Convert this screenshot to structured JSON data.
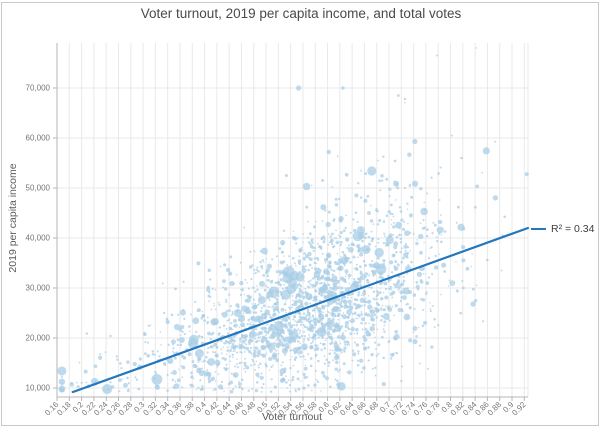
{
  "window": {
    "background": "#ffffff",
    "frame_border_color": "#c9c9c9"
  },
  "chart_data": {
    "type": "scatter",
    "title": "Voter turnout, 2019 per capita income, and total votes",
    "xlabel": "Voter turnout",
    "ylabel": "2019 per capita income",
    "x_tick_values": [
      0.16,
      0.18,
      0.2,
      0.22,
      0.24,
      0.26,
      0.28,
      0.3,
      0.32,
      0.34,
      0.36,
      0.38,
      0.4,
      0.42,
      0.44,
      0.46,
      0.48,
      0.5,
      0.52,
      0.54,
      0.56,
      0.58,
      0.6,
      0.62,
      0.64,
      0.66,
      0.68,
      0.7,
      0.72,
      0.74,
      0.76,
      0.78,
      0.8,
      0.82,
      0.84,
      0.86,
      0.88,
      0.9,
      0.92
    ],
    "x_tick_labels": [
      "0.16",
      "0.18",
      "0.2",
      "0.22",
      "0.24",
      "0.26",
      "0.28",
      "0.3",
      "0.32",
      "0.34",
      "0.36",
      "0.38",
      "0.4",
      "0.42",
      "0.44",
      "0.46",
      "0.48",
      "0.5",
      "0.52",
      "0.54",
      "0.56",
      "0.58",
      "0.6",
      "0.62",
      "0.64",
      "0.66",
      "0.68",
      "0.7",
      "0.72",
      "0.74",
      "0.76",
      "0.78",
      "0.8",
      "0.82",
      "0.84",
      "0.86",
      "0.88",
      "0.9",
      "0.92"
    ],
    "y_tick_values": [
      10000,
      20000,
      30000,
      40000,
      50000,
      60000,
      70000
    ],
    "y_tick_labels": [
      "10,000",
      "20,000",
      "30,000",
      "40,000",
      "50,000",
      "60,000",
      "70,000"
    ],
    "xlim": [
      0.16,
      0.926
    ],
    "ylim": [
      8200,
      79000
    ],
    "grid": true,
    "legend": {
      "label": "R² = 0.34",
      "position": "right-of-plot"
    },
    "trendline": {
      "r_squared": 0.34,
      "x1": 0.186,
      "y1": 9200,
      "x2": 0.926,
      "y2": 42000
    },
    "bubble_cloud_model": {
      "note": "dense cloud of ~2100 bubbles, size encodes total votes; statistical model of the unreadable mass",
      "count": 2100,
      "seed": 20190,
      "x_mix": [
        {
          "w": 0.84,
          "mean": 0.585,
          "sd": 0.1
        },
        {
          "w": 0.16,
          "mean": 0.43,
          "sd": 0.13
        }
      ],
      "x_clamp": [
        0.168,
        0.924
      ],
      "trend_base": {
        "intercept_x": 0.186,
        "intercept_y": 9200,
        "slope": 44324,
        "offset": -600
      },
      "noise": {
        "base_sd": 2800,
        "x_sd": 7500,
        "upper_skew": 1.18
      },
      "y_floor": 9200,
      "y_floor_band": 2600,
      "y_max": 78000,
      "size_dist": [
        {
          "p": 0.7,
          "min": 0.7,
          "max": 1.4
        },
        {
          "p": 0.22,
          "min": 1.4,
          "max": 2.2
        },
        {
          "p": 0.065,
          "min": 2.2,
          "max": 3.5
        },
        {
          "p": 0.015,
          "min": 3.5,
          "max": 5.5
        }
      ]
    },
    "highlight_points": [
      {
        "x": 0.553,
        "y": 70000,
        "r": 2.6
      },
      {
        "x": 0.625,
        "y": 70000,
        "r": 1.8
      },
      {
        "x": 0.715,
        "y": 68500,
        "r": 1.4
      },
      {
        "x": 0.726,
        "y": 67800,
        "r": 1.2
      },
      {
        "x": 0.778,
        "y": 76500,
        "r": 1.0
      },
      {
        "x": 0.802,
        "y": 60500,
        "r": 1.0
      },
      {
        "x": 0.818,
        "y": 56000,
        "r": 1.3
      },
      {
        "x": 0.602,
        "y": 57200,
        "r": 2.2
      },
      {
        "x": 0.672,
        "y": 53400,
        "r": 4.6
      },
      {
        "x": 0.742,
        "y": 59300,
        "r": 2.6
      },
      {
        "x": 0.592,
        "y": 51500,
        "r": 1.5
      },
      {
        "x": 0.566,
        "y": 50300,
        "r": 3.8
      },
      {
        "x": 0.533,
        "y": 52500,
        "r": 1.5
      },
      {
        "x": 0.647,
        "y": 48500,
        "r": 2.0
      },
      {
        "x": 0.757,
        "y": 45300,
        "r": 3.8
      },
      {
        "x": 0.537,
        "y": 33200,
        "r": 6.0
      },
      {
        "x": 0.555,
        "y": 32200,
        "r": 4.8
      },
      {
        "x": 0.654,
        "y": 41600,
        "r": 4.0
      },
      {
        "x": 0.628,
        "y": 35600,
        "r": 4.0
      },
      {
        "x": 0.454,
        "y": 25000,
        "r": 4.0
      },
      {
        "x": 0.415,
        "y": 23200,
        "r": 3.5
      },
      {
        "x": 0.701,
        "y": 39600,
        "r": 4.0
      },
      {
        "x": 0.783,
        "y": 41600,
        "r": 3.5
      },
      {
        "x": 0.363,
        "y": 19600,
        "r": 3.0
      },
      {
        "x": 0.493,
        "y": 27600,
        "r": 4.0
      }
    ],
    "colors": {
      "bubble": "#a9cde5",
      "bubble_opacity": "0.75",
      "trendline": "#2277bd",
      "grid": "#e9e9e9",
      "axis": "#b5b5b5",
      "tick_text": "#757575",
      "axis_title": "#5b5b5b",
      "title": "#4a4a4a",
      "legend_text": "#3d3d3d"
    }
  }
}
